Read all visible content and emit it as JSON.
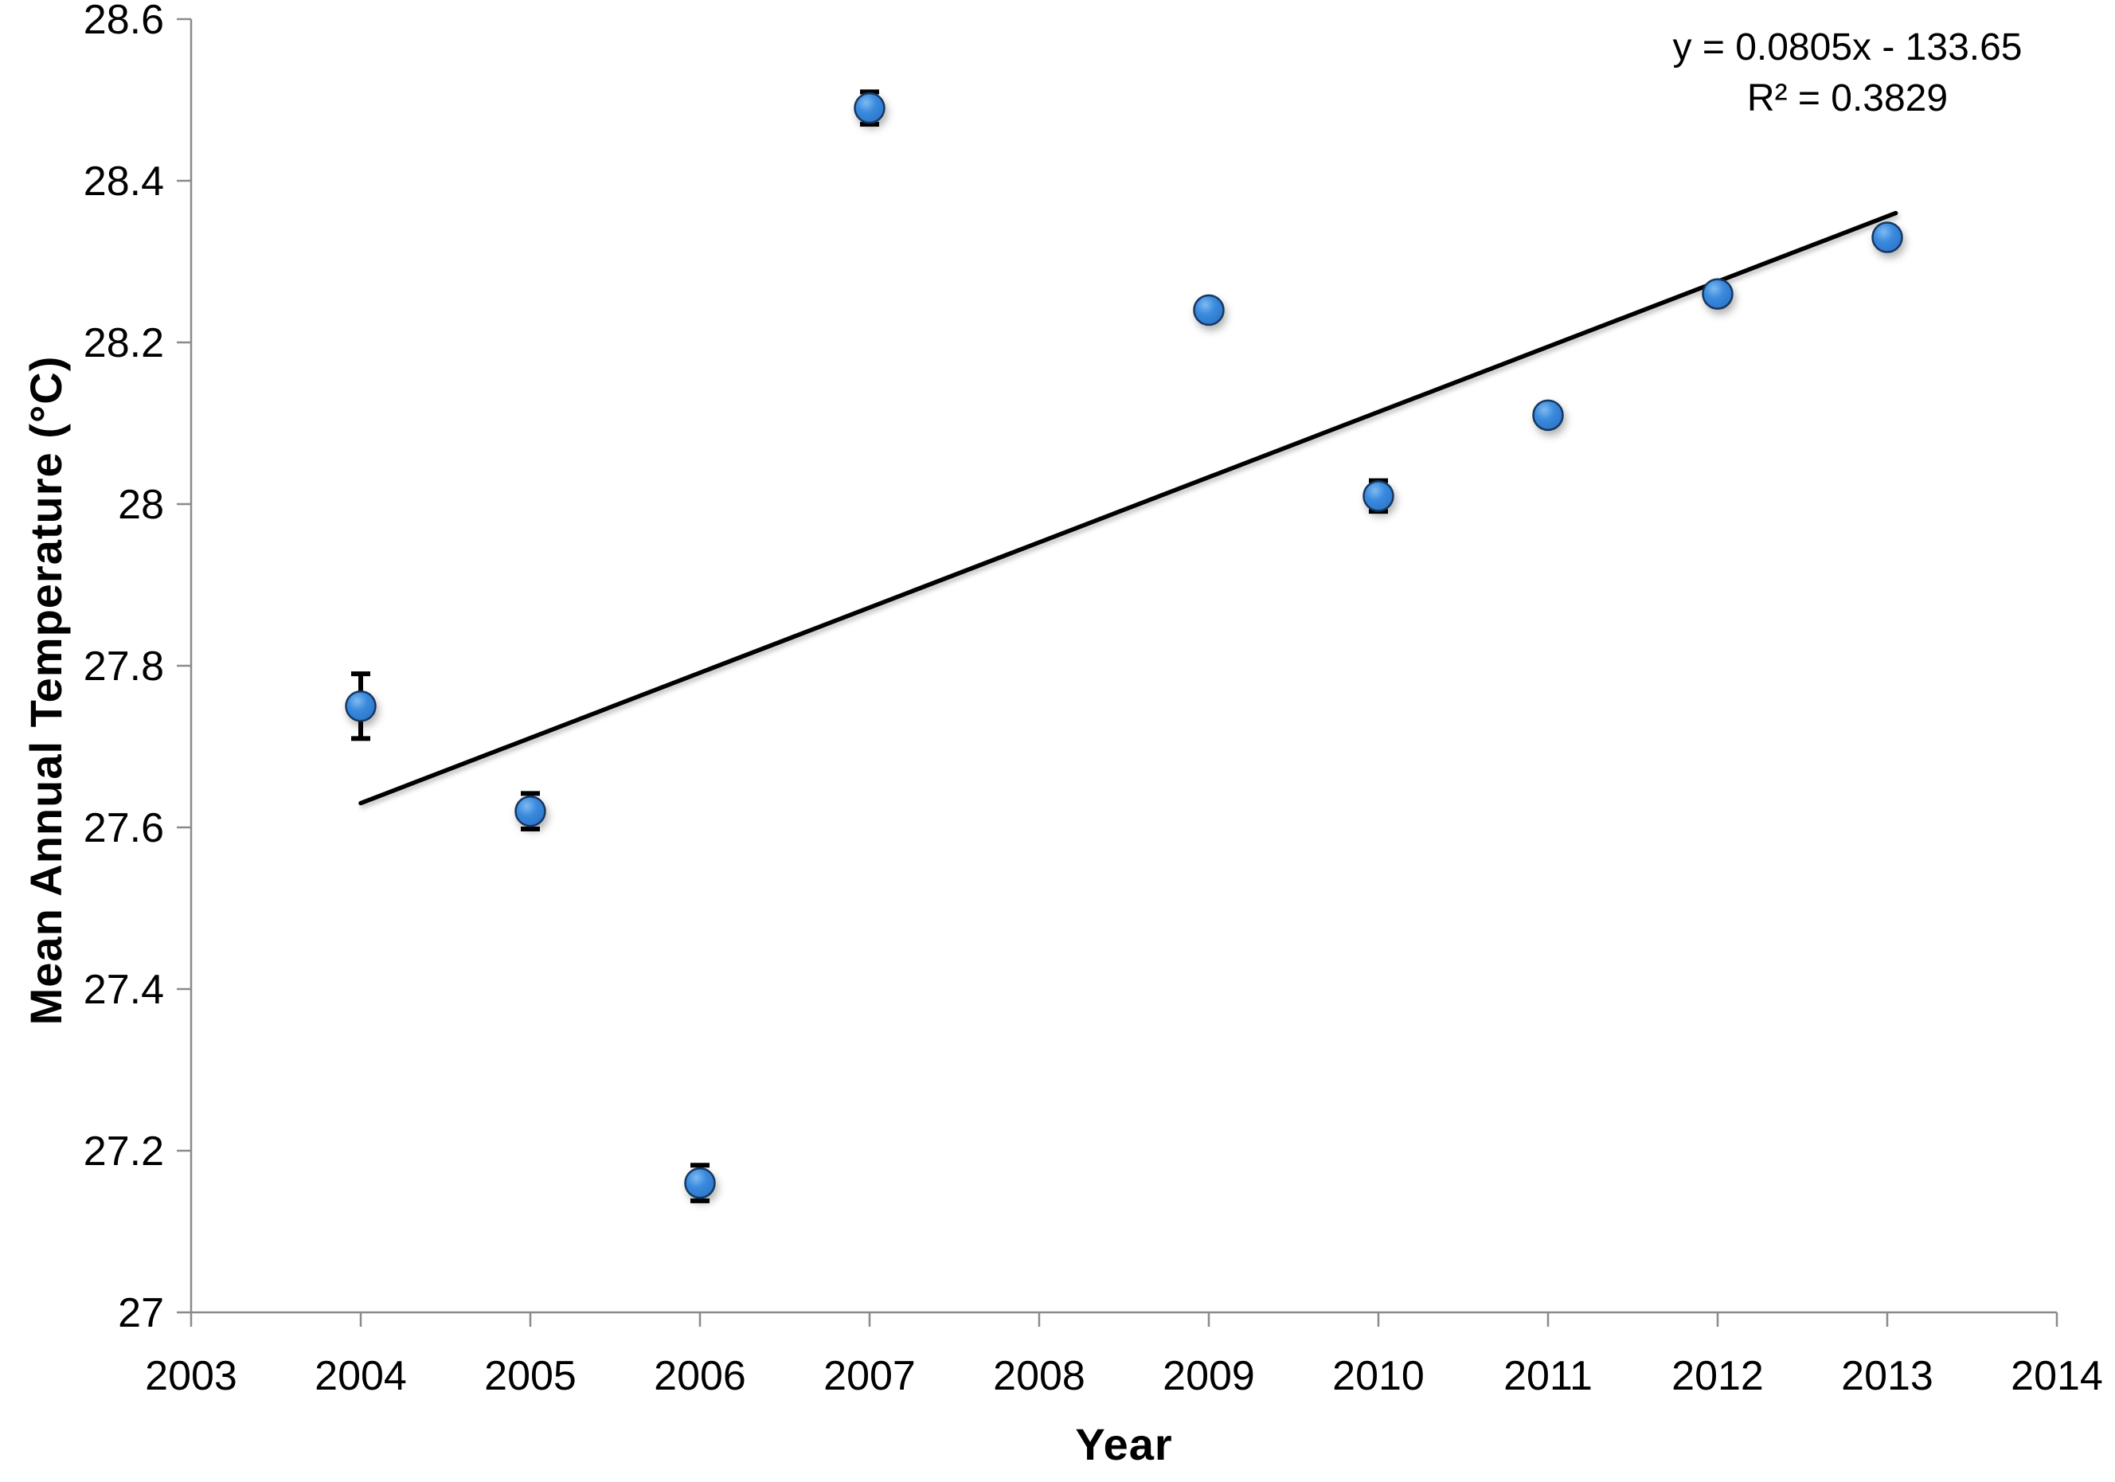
{
  "chart_data": {
    "type": "scatter",
    "title": "",
    "xlabel": "Year",
    "ylabel": "Mean Annual Temperature (°C)",
    "xlim": [
      2003,
      2014
    ],
    "ylim": [
      27,
      28.6
    ],
    "grid": false,
    "legend": "none",
    "x_ticks": [
      {
        "value": 2003,
        "label": "2003"
      },
      {
        "value": 2004,
        "label": "2004"
      },
      {
        "value": 2005,
        "label": "2005"
      },
      {
        "value": 2006,
        "label": "2006"
      },
      {
        "value": 2007,
        "label": "2007"
      },
      {
        "value": 2008,
        "label": "2008"
      },
      {
        "value": 2009,
        "label": "2009"
      },
      {
        "value": 2010,
        "label": "2010"
      },
      {
        "value": 2011,
        "label": "2011"
      },
      {
        "value": 2012,
        "label": "2012"
      },
      {
        "value": 2013,
        "label": "2013"
      },
      {
        "value": 2014,
        "label": "2014"
      }
    ],
    "y_ticks": [
      {
        "value": 27,
        "label": "27"
      },
      {
        "value": 27.2,
        "label": "27.2"
      },
      {
        "value": 27.4,
        "label": "27.4"
      },
      {
        "value": 27.6,
        "label": "27.6"
      },
      {
        "value": 27.8,
        "label": "27.8"
      },
      {
        "value": 28,
        "label": "28"
      },
      {
        "value": 28.2,
        "label": "28.2"
      },
      {
        "value": 28.4,
        "label": "28.4"
      },
      {
        "value": 28.6,
        "label": "28.6"
      }
    ],
    "series": [
      {
        "name": "Mean annual temperature",
        "marker": "circle",
        "points": [
          {
            "x": 2004,
            "y": 27.75,
            "err": 0.04
          },
          {
            "x": 2005,
            "y": 27.62,
            "err": 0.022
          },
          {
            "x": 2006,
            "y": 27.16,
            "err": 0.022
          },
          {
            "x": 2007,
            "y": 28.49,
            "err": 0.02
          },
          {
            "x": 2009,
            "y": 28.24,
            "err": 0
          },
          {
            "x": 2010,
            "y": 28.01,
            "err": 0.019
          },
          {
            "x": 2011,
            "y": 28.11,
            "err": 0
          },
          {
            "x": 2012,
            "y": 28.26,
            "err": 0
          },
          {
            "x": 2013,
            "y": 28.33,
            "err": 0
          }
        ]
      }
    ],
    "trendline": {
      "slope": 0.0805,
      "intercept": -133.65,
      "r_squared": 0.3829,
      "draw_from_x": 2004,
      "draw_from_y": 27.63,
      "draw_to_x": 2013.05,
      "draw_to_y": 28.36
    }
  },
  "annotation": {
    "equation_line": "y = 0.0805x - 133.65",
    "r_squared_line": "R² = 0.3829"
  },
  "colors": {
    "background": "#ffffff",
    "axis": "#8a8a8a",
    "text": "#000000",
    "trendline": "#000000",
    "error_bar": "#000000",
    "marker_highlight": "#7fbaf0",
    "marker_fill": "#3a8ade",
    "marker_shade": "#2b74c8",
    "marker_edge": "#17375e"
  }
}
